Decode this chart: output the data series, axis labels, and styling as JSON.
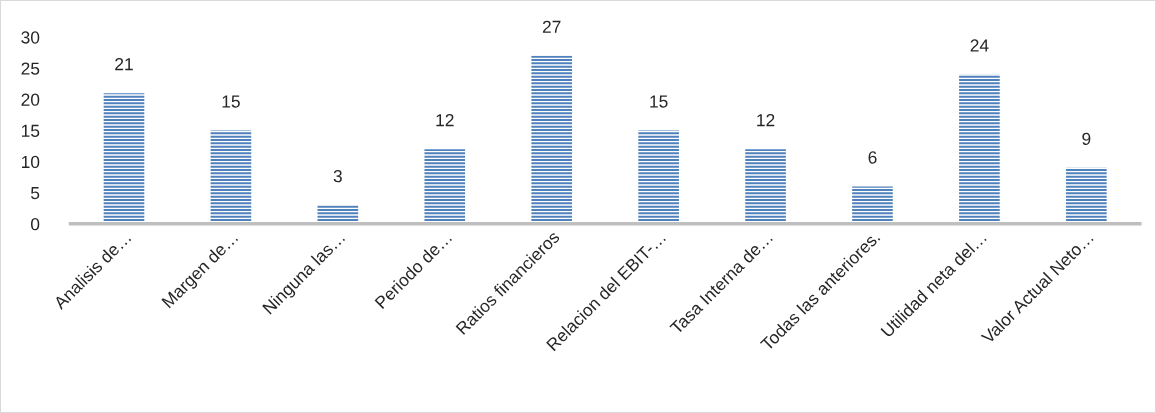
{
  "chart_data": {
    "type": "bar",
    "categories": [
      "Analisis de…",
      "Margen de…",
      "Ninguna las…",
      "Periodo de…",
      "Ratios financieros",
      "Relacion del EBIT-…",
      "Tasa Interna de…",
      "Todas las anteriores.",
      "Utilidad neta del…",
      "Valor Actual Neto…"
    ],
    "values": [
      21,
      15,
      3,
      12,
      27,
      15,
      12,
      6,
      24,
      9
    ],
    "color": "#4f81bd",
    "ylim": [
      0,
      30
    ],
    "yticks": [
      0,
      5,
      10,
      15,
      20,
      25,
      30
    ],
    "grid": false,
    "legend": false,
    "data_labels": true
  }
}
